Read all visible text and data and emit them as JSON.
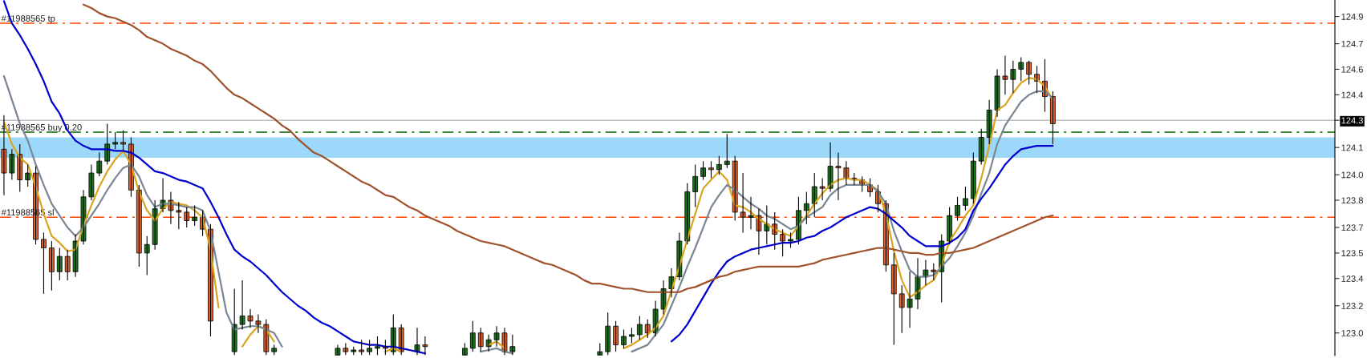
{
  "chart_data": {
    "type": "candlestick",
    "categories": [
      null,
      null,
      null,
      null,
      null,
      null,
      null,
      null,
      null,
      null,
      null,
      null,
      null,
      null,
      null,
      null,
      null,
      null,
      null,
      null,
      null,
      null,
      null,
      null,
      null,
      null,
      null,
      null,
      null,
      null,
      null,
      null,
      null,
      null,
      null,
      null,
      null,
      null,
      null,
      null,
      null,
      null,
      null,
      null,
      null,
      null,
      null,
      null,
      null,
      null,
      null,
      null,
      null,
      null,
      null,
      null,
      null,
      null,
      null,
      null,
      null,
      null,
      null,
      null,
      null,
      null,
      null,
      null,
      null,
      null,
      null,
      null,
      null,
      null,
      null,
      null,
      null,
      null,
      null,
      null,
      null,
      null,
      null,
      null,
      null,
      null,
      null,
      null,
      null,
      null,
      null,
      null,
      null,
      null,
      null,
      null,
      null,
      null,
      null,
      null,
      null,
      null,
      null,
      null,
      null,
      null,
      null,
      null,
      null,
      null,
      null,
      null,
      null,
      null,
      null,
      null,
      null,
      null,
      null,
      null,
      null,
      null,
      null,
      null,
      null,
      null,
      null,
      null,
      null,
      null,
      null,
      null,
      null,
      null,
      null,
      null,
      null,
      null,
      null,
      null,
      null,
      null,
      null,
      null,
      null,
      null,
      null,
      null,
      null,
      null,
      null,
      null,
      null,
      null,
      null,
      null,
      null,
      null,
      null,
      null,
      null,
      null,
      null,
      null,
      null,
      null,
      null,
      null
    ],
    "ohlc": [
      [
        124.12,
        124.32,
        123.85,
        123.98
      ],
      [
        123.98,
        124.12,
        123.94,
        124.09
      ],
      [
        124.09,
        124.15,
        123.87,
        123.94
      ],
      [
        123.94,
        124.03,
        123.9,
        123.98
      ],
      [
        123.98,
        124.02,
        123.56,
        123.59
      ],
      [
        123.59,
        123.63,
        123.27,
        123.54
      ],
      [
        123.54,
        123.58,
        123.29,
        123.4
      ],
      [
        123.4,
        123.54,
        123.35,
        123.49
      ],
      [
        123.49,
        123.53,
        123.35,
        123.4
      ],
      [
        123.4,
        123.62,
        123.37,
        123.58
      ],
      [
        123.58,
        123.88,
        123.56,
        123.84
      ],
      [
        123.84,
        124.03,
        123.82,
        123.98
      ],
      [
        123.98,
        124.1,
        123.96,
        124.05
      ],
      [
        124.05,
        124.27,
        124.03,
        124.15
      ],
      [
        124.15,
        124.22,
        124.12,
        124.16
      ],
      [
        124.16,
        124.23,
        124.11,
        124.15
      ],
      [
        124.15,
        124.19,
        123.84,
        123.88
      ],
      [
        123.88,
        123.91,
        123.43,
        123.51
      ],
      [
        123.51,
        123.61,
        123.38,
        123.56
      ],
      [
        123.56,
        123.82,
        123.53,
        123.77
      ],
      [
        123.77,
        123.95,
        123.75,
        123.82
      ],
      [
        123.82,
        123.87,
        123.68,
        123.76
      ],
      [
        123.76,
        123.81,
        123.65,
        123.75
      ],
      [
        123.75,
        123.78,
        123.66,
        123.7
      ],
      [
        123.7,
        123.79,
        123.67,
        123.72
      ],
      [
        123.72,
        123.76,
        123.61,
        123.65
      ],
      [
        123.65,
        123.68,
        123.02,
        123.11
      ],
      null,
      null,
      [
        122.93,
        123.3,
        122.91,
        123.09
      ],
      [
        123.09,
        123.35,
        123.06,
        123.14
      ],
      [
        123.14,
        123.18,
        123.07,
        123.11
      ],
      [
        123.11,
        123.15,
        123.04,
        123.09
      ],
      [
        123.09,
        123.12,
        122.91,
        122.93
      ],
      [
        122.93,
        122.97,
        122.91,
        122.95
      ],
      null,
      null,
      null,
      null,
      null,
      null,
      null,
      [
        122.91,
        122.97,
        122.91,
        122.95
      ],
      [
        122.95,
        122.98,
        122.91,
        122.93
      ],
      [
        122.93,
        122.96,
        122.91,
        122.94
      ],
      [
        122.94,
        123.0,
        122.91,
        122.93
      ],
      [
        122.93,
        123.0,
        122.91,
        122.95
      ],
      [
        122.95,
        123.02,
        122.91,
        122.96
      ],
      [
        122.96,
        123.0,
        122.91,
        122.95
      ],
      [
        122.93,
        123.15,
        122.91,
        123.07
      ],
      [
        123.07,
        123.09,
        122.91,
        122.93
      ],
      null,
      [
        122.93,
        123.07,
        122.91,
        122.97
      ],
      [
        122.97,
        123.02,
        122.91,
        122.96
      ],
      null,
      null,
      null,
      null,
      [
        122.91,
        122.98,
        122.91,
        122.95
      ],
      [
        122.95,
        123.11,
        122.93,
        123.04
      ],
      [
        123.04,
        123.07,
        122.93,
        122.96
      ],
      [
        122.96,
        123.03,
        122.93,
        123.0
      ],
      [
        123.0,
        123.08,
        122.96,
        123.04
      ],
      [
        123.04,
        123.07,
        122.91,
        122.93
      ],
      [
        122.93,
        123.03,
        122.91,
        122.96
      ],
      null,
      null,
      null,
      null,
      null,
      null,
      null,
      null,
      null,
      null,
      [
        122.91,
        122.98,
        122.91,
        122.93
      ],
      [
        122.93,
        123.16,
        122.91,
        123.08
      ],
      [
        123.08,
        123.11,
        122.93,
        122.97
      ],
      [
        122.97,
        123.06,
        122.95,
        123.02
      ],
      [
        123.02,
        123.07,
        122.98,
        123.03
      ],
      [
        123.03,
        123.14,
        123.0,
        123.09
      ],
      [
        123.09,
        123.12,
        123.01,
        123.04
      ],
      [
        123.04,
        123.23,
        123.02,
        123.18
      ],
      [
        123.18,
        123.35,
        123.15,
        123.3
      ],
      [
        123.3,
        123.42,
        123.25,
        123.37
      ],
      [
        123.37,
        123.63,
        123.35,
        123.58
      ],
      [
        123.58,
        123.92,
        123.56,
        123.87
      ],
      [
        123.87,
        124.03,
        123.78,
        123.96
      ],
      [
        123.96,
        124.05,
        123.94,
        124.01
      ],
      [
        124.01,
        124.05,
        123.95,
        124.0
      ],
      [
        124.0,
        124.08,
        123.97,
        124.03
      ],
      [
        124.03,
        124.21,
        124.01,
        124.05
      ],
      [
        124.05,
        124.08,
        123.7,
        123.75
      ],
      [
        123.75,
        123.98,
        123.63,
        123.72
      ],
      [
        123.72,
        123.84,
        123.65,
        123.73
      ],
      [
        123.73,
        123.77,
        123.5,
        123.64
      ],
      [
        123.64,
        123.79,
        123.56,
        123.68
      ],
      [
        123.68,
        123.75,
        123.53,
        123.62
      ],
      [
        123.62,
        123.65,
        123.49,
        123.58
      ],
      [
        123.58,
        123.63,
        123.54,
        123.59
      ],
      [
        123.59,
        123.84,
        123.56,
        123.76
      ],
      [
        123.76,
        123.87,
        123.68,
        123.8
      ],
      [
        123.8,
        123.98,
        123.72,
        123.9
      ],
      [
        123.9,
        123.95,
        123.82,
        123.89
      ],
      [
        123.89,
        124.16,
        123.87,
        124.02
      ],
      [
        124.02,
        124.1,
        123.82,
        124.01
      ],
      [
        124.01,
        124.05,
        123.91,
        123.95
      ],
      [
        123.95,
        123.98,
        123.91,
        123.94
      ],
      [
        123.94,
        123.96,
        123.87,
        123.91
      ],
      [
        123.91,
        123.95,
        123.84,
        123.87
      ],
      [
        123.87,
        123.91,
        123.75,
        123.8
      ],
      [
        123.8,
        123.82,
        123.4,
        123.44
      ],
      [
        123.44,
        123.51,
        122.97,
        123.27
      ],
      [
        123.27,
        123.32,
        123.04,
        123.19
      ],
      [
        123.19,
        123.4,
        123.07,
        123.24
      ],
      [
        123.24,
        123.48,
        123.18,
        123.37
      ],
      [
        123.37,
        123.47,
        123.32,
        123.41
      ],
      [
        123.41,
        123.45,
        123.35,
        123.4
      ],
      [
        123.4,
        123.62,
        123.22,
        123.58
      ],
      [
        123.58,
        123.78,
        123.56,
        123.73
      ],
      [
        123.73,
        123.84,
        123.7,
        123.79
      ],
      [
        123.79,
        123.9,
        123.76,
        123.83
      ],
      [
        123.83,
        124.1,
        123.8,
        124.05
      ],
      [
        124.05,
        124.24,
        124.03,
        124.19
      ],
      [
        124.19,
        124.41,
        124.15,
        124.35
      ],
      [
        124.35,
        124.59,
        124.31,
        124.55
      ],
      [
        124.55,
        124.67,
        124.44,
        124.53
      ],
      [
        124.53,
        124.64,
        124.45,
        124.59
      ],
      [
        124.59,
        124.66,
        124.52,
        124.63
      ],
      [
        124.63,
        124.64,
        124.5,
        124.56
      ],
      [
        124.56,
        124.61,
        124.45,
        124.52
      ],
      [
        124.52,
        124.65,
        124.34,
        124.43
      ],
      [
        124.43,
        124.46,
        124.15,
        124.27
      ],
      null,
      null,
      null,
      null,
      null,
      null,
      null,
      null,
      null,
      null,
      null,
      null,
      null,
      null,
      null,
      null,
      null,
      null,
      null,
      null,
      null,
      null,
      null,
      null,
      null,
      null,
      null,
      null,
      null,
      null,
      null,
      null,
      null,
      null,
      null
    ],
    "series": [
      {
        "type": "line",
        "color": "#daa520",
        "values": [
          124.28,
          124.15,
          124.07,
          124.03,
          123.9,
          123.74,
          123.61,
          123.57,
          123.52,
          123.53,
          123.67,
          123.79,
          123.9,
          123.99,
          124.06,
          124.11,
          124.03,
          123.87,
          123.76,
          123.7,
          123.77,
          123.81,
          123.8,
          123.79,
          123.76,
          123.72,
          123.53,
          123.19,
          null,
          null,
          122.96,
          123.03,
          123.08,
          123.06,
          122.99,
          null,
          null,
          null,
          null,
          null,
          null,
          null,
          null,
          null,
          null,
          null,
          null,
          null,
          122.93,
          122.95,
          122.93,
          null,
          null,
          null,
          null,
          null,
          null,
          null,
          null,
          null,
          null,
          122.97,
          122.99,
          122.95,
          null,
          null,
          null,
          null,
          null,
          null,
          null,
          null,
          null,
          null,
          null,
          null,
          null,
          null,
          122.95,
          122.97,
          123.0,
          123.03,
          123.07,
          123.14,
          123.29,
          123.43,
          123.59,
          123.74,
          123.89,
          123.94,
          123.99,
          123.94,
          123.79,
          123.78,
          123.75,
          123.71,
          123.68,
          123.65,
          123.63,
          123.61,
          123.67,
          123.73,
          123.8,
          123.86,
          123.91,
          123.94,
          123.95,
          123.94,
          123.94,
          123.91,
          123.88,
          123.74,
          123.52,
          123.35,
          123.25,
          123.28,
          123.32,
          123.35,
          123.44,
          123.58,
          123.65,
          123.73,
          123.79,
          123.95,
          124.14,
          124.35,
          124.38,
          124.45,
          124.51,
          124.54,
          124.53,
          124.49,
          124.41,
          null,
          null,
          null,
          null,
          null,
          null,
          null,
          null,
          null,
          null,
          null,
          null,
          null,
          null,
          null,
          null,
          null,
          null,
          null,
          null,
          null,
          null,
          null,
          null,
          null,
          null,
          null,
          null,
          null,
          null,
          null,
          null,
          null,
          null,
          null
        ]
      },
      {
        "type": "line",
        "color": "#7a8794",
        "values": [
          124.55,
          124.41,
          124.27,
          124.17,
          124.03,
          123.91,
          123.8,
          123.73,
          123.66,
          123.61,
          123.66,
          123.73,
          123.8,
          123.88,
          123.95,
          124.01,
          124.03,
          123.96,
          123.85,
          123.78,
          123.8,
          123.8,
          123.79,
          123.78,
          123.78,
          123.76,
          123.64,
          123.4,
          123.16,
          123.06,
          123.07,
          123.08,
          123.08,
          123.06,
          123.04,
          122.96,
          null,
          null,
          null,
          null,
          null,
          null,
          null,
          null,
          null,
          null,
          null,
          null,
          null,
          null,
          null,
          null,
          null,
          null,
          null,
          null,
          null,
          null,
          null,
          null,
          122.93,
          122.94,
          122.95,
          122.93,
          122.92,
          null,
          null,
          null,
          null,
          null,
          null,
          null,
          null,
          null,
          null,
          null,
          null,
          null,
          null,
          122.93,
          122.95,
          122.97,
          123.03,
          123.09,
          123.2,
          123.31,
          123.43,
          123.54,
          123.66,
          123.78,
          123.85,
          123.91,
          123.88,
          123.84,
          123.8,
          123.77,
          123.73,
          123.71,
          123.68,
          123.65,
          123.67,
          123.72,
          123.75,
          123.78,
          123.85,
          123.89,
          123.91,
          123.91,
          123.91,
          123.91,
          123.87,
          123.8,
          123.64,
          123.52,
          123.41,
          123.37,
          123.37,
          123.38,
          123.43,
          123.48,
          123.55,
          123.63,
          123.73,
          123.86,
          123.98,
          124.15,
          124.26,
          124.33,
          124.4,
          124.44,
          124.46,
          124.46,
          124.42,
          null,
          null,
          null,
          null,
          null,
          null,
          null,
          null,
          null,
          null,
          null,
          null,
          null,
          null,
          null,
          null,
          null,
          null,
          null,
          null,
          null,
          null,
          null,
          null,
          null,
          null,
          null,
          null,
          null,
          null,
          null,
          null,
          null,
          null,
          null
        ]
      },
      {
        "type": "line",
        "color": "#0000cd",
        "values": [
          124.99,
          124.86,
          124.79,
          124.71,
          124.62,
          124.52,
          124.4,
          124.33,
          124.23,
          124.17,
          124.14,
          124.12,
          124.12,
          124.12,
          124.11,
          124.11,
          124.1,
          124.07,
          124.03,
          123.99,
          123.98,
          123.96,
          123.94,
          123.93,
          123.91,
          123.89,
          123.81,
          123.72,
          123.62,
          123.53,
          123.49,
          123.46,
          123.42,
          123.38,
          123.33,
          123.28,
          123.24,
          123.2,
          123.17,
          123.13,
          123.1,
          123.08,
          123.05,
          123.02,
          122.99,
          122.98,
          122.97,
          122.97,
          122.96,
          122.96,
          122.95,
          122.94,
          122.93,
          122.92,
          null,
          null,
          null,
          null,
          null,
          null,
          null,
          null,
          null,
          null,
          null,
          null,
          null,
          null,
          null,
          null,
          null,
          null,
          null,
          null,
          null,
          null,
          null,
          null,
          null,
          null,
          null,
          null,
          null,
          null,
          122.99,
          123.03,
          123.09,
          123.17,
          123.25,
          123.33,
          123.4,
          123.46,
          123.49,
          123.51,
          123.53,
          123.54,
          123.55,
          123.56,
          123.57,
          123.57,
          123.58,
          123.6,
          123.61,
          123.64,
          123.66,
          123.69,
          123.72,
          123.74,
          123.76,
          123.78,
          123.77,
          123.74,
          123.7,
          123.66,
          123.61,
          123.58,
          123.55,
          123.55,
          123.55,
          123.57,
          123.6,
          123.65,
          123.76,
          123.83,
          123.89,
          123.96,
          124.03,
          124.08,
          124.12,
          124.13,
          124.14,
          124.14,
          124.14,
          null,
          null,
          null,
          null,
          null,
          null,
          null,
          null,
          null,
          null,
          null,
          null,
          null,
          null,
          null,
          null,
          null,
          null,
          null,
          null,
          null,
          null,
          null,
          null,
          null,
          null,
          null,
          null,
          null,
          null,
          null,
          null,
          null,
          null,
          null
        ]
      },
      {
        "type": "line",
        "color": "#a0522d",
        "values": [
          null,
          null,
          null,
          null,
          null,
          null,
          null,
          null,
          null,
          null,
          124.97,
          124.95,
          124.92,
          124.9,
          124.89,
          124.87,
          124.85,
          124.82,
          124.78,
          124.76,
          124.74,
          124.71,
          124.69,
          124.67,
          124.64,
          124.62,
          124.58,
          124.53,
          124.48,
          124.44,
          124.42,
          124.39,
          124.36,
          124.33,
          124.3,
          124.26,
          124.23,
          124.18,
          124.14,
          124.1,
          124.08,
          124.05,
          124.02,
          123.99,
          123.96,
          123.93,
          123.91,
          123.88,
          123.85,
          123.84,
          123.81,
          123.78,
          123.76,
          123.73,
          123.71,
          123.69,
          123.67,
          123.64,
          123.62,
          123.6,
          123.58,
          123.57,
          123.56,
          123.55,
          123.53,
          123.51,
          123.49,
          123.47,
          123.45,
          123.44,
          123.42,
          123.4,
          123.38,
          123.35,
          123.33,
          123.33,
          123.32,
          123.31,
          123.3,
          123.3,
          123.29,
          123.28,
          123.28,
          123.28,
          123.28,
          123.28,
          123.3,
          123.31,
          123.33,
          123.35,
          123.37,
          123.38,
          123.4,
          123.41,
          123.42,
          123.43,
          123.43,
          123.43,
          123.43,
          123.43,
          123.43,
          123.44,
          123.45,
          123.47,
          123.48,
          123.49,
          123.5,
          123.51,
          123.52,
          123.53,
          123.54,
          123.54,
          123.53,
          123.52,
          123.51,
          123.51,
          123.5,
          123.5,
          123.51,
          123.51,
          123.52,
          123.53,
          123.54,
          123.56,
          123.58,
          123.6,
          123.62,
          123.64,
          123.66,
          123.68,
          123.7,
          123.72,
          123.73,
          null,
          null,
          null,
          null,
          null,
          null,
          null,
          null,
          null,
          null,
          null,
          null,
          null,
          null,
          null,
          null,
          null,
          null,
          null,
          null,
          null,
          null,
          null,
          null,
          null,
          null,
          null,
          null,
          null,
          null,
          null,
          null,
          null,
          null,
          null
        ]
      }
    ],
    "ylim": [
      122.907,
      124.997
    ],
    "yticks": [
      {
        "value": 123.04,
        "label": "123.0"
      },
      {
        "value": 123.2,
        "label": "123.2"
      },
      {
        "value": 123.36,
        "label": "123.4"
      },
      {
        "value": 123.51,
        "label": "123.5"
      },
      {
        "value": 123.66,
        "label": "123.7"
      },
      {
        "value": 123.82,
        "label": "123.8"
      },
      {
        "value": 123.97,
        "label": "124.0"
      },
      {
        "value": 124.13,
        "label": "124.1"
      },
      {
        "value": 124.29,
        "label": "124.3"
      },
      {
        "value": 124.44,
        "label": "124.4"
      },
      {
        "value": 124.59,
        "label": "124.6"
      },
      {
        "value": 124.74,
        "label": "124.7"
      },
      {
        "value": 124.9,
        "label": "124.9"
      }
    ],
    "tick_labels": "y",
    "ref_lines": [
      {
        "axis": "y",
        "value": 124.86,
        "label": "#11988565 tp",
        "color": "#ff4500",
        "line_style": "dashed"
      },
      {
        "axis": "y",
        "value": 124.22,
        "label": "#11988565 buy 0.20",
        "color": "#006400",
        "line_style": "dashed"
      },
      {
        "axis": "y",
        "value": 123.72,
        "label": "#11988565 sl",
        "color": "#ff4500",
        "line_style": "dashed"
      },
      {
        "axis": "y",
        "value": 124.29,
        "color": "#c0c0c0",
        "line_style": "solid"
      }
    ],
    "bands": [
      {
        "axis": "y",
        "from": 124.07,
        "to": 124.19,
        "color": "#9cd8fa"
      }
    ]
  }
}
